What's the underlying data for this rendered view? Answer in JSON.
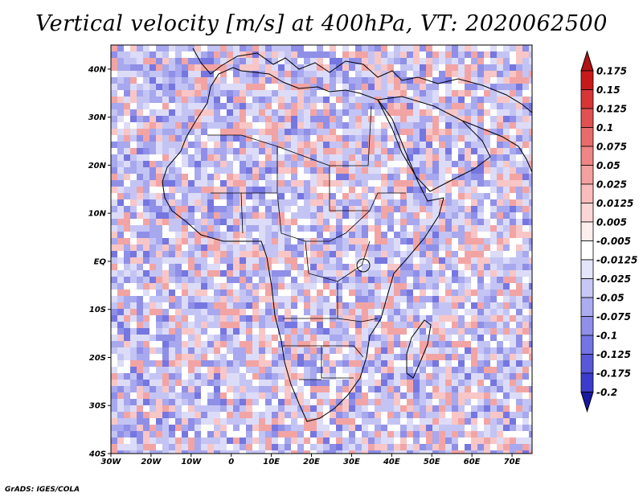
{
  "title": "Vertical velocity [m/s] at 400hPa, VT: 2020062500",
  "credit": "GrADS: IGES/COLA",
  "map": {
    "lon_range": [
      -30,
      75
    ],
    "lat_range": [
      -40,
      45
    ],
    "lat_ticks": [
      {
        "value": 40,
        "label": "40N"
      },
      {
        "value": 30,
        "label": "30N"
      },
      {
        "value": 20,
        "label": "20N"
      },
      {
        "value": 10,
        "label": "10N"
      },
      {
        "value": 0,
        "label": "EQ"
      },
      {
        "value": -10,
        "label": "10S"
      },
      {
        "value": -20,
        "label": "20S"
      },
      {
        "value": -30,
        "label": "30S"
      },
      {
        "value": -40,
        "label": "40S"
      }
    ],
    "lon_ticks": [
      {
        "value": -30,
        "label": "30W"
      },
      {
        "value": -20,
        "label": "20W"
      },
      {
        "value": -10,
        "label": "10W"
      },
      {
        "value": 0,
        "label": "0"
      },
      {
        "value": 10,
        "label": "10E"
      },
      {
        "value": 20,
        "label": "20E"
      },
      {
        "value": 30,
        "label": "30E"
      },
      {
        "value": 40,
        "label": "40E"
      },
      {
        "value": 50,
        "label": "50E"
      },
      {
        "value": 60,
        "label": "60E"
      },
      {
        "value": 70,
        "label": "70E"
      }
    ]
  },
  "colorbar": {
    "levels": [
      {
        "label": "0.175",
        "color": "#c81a1a"
      },
      {
        "label": "0.15",
        "color": "#d63636"
      },
      {
        "label": "0.125",
        "color": "#e05252"
      },
      {
        "label": "0.1",
        "color": "#e86c6c"
      },
      {
        "label": "0.075",
        "color": "#ee8686"
      },
      {
        "label": "0.05",
        "color": "#f3a0a0"
      },
      {
        "label": "0.025",
        "color": "#f8bcbc"
      },
      {
        "label": "0.0125",
        "color": "#fbd6d6"
      },
      {
        "label": "0.005",
        "color": "#fdeeee"
      },
      {
        "label": "-0.005",
        "color": "#ffffff"
      },
      {
        "label": "-0.0125",
        "color": "#e4e4fb"
      },
      {
        "label": "-0.025",
        "color": "#c8c8f6"
      },
      {
        "label": "-0.05",
        "color": "#acacf0"
      },
      {
        "label": "-0.075",
        "color": "#9090ea"
      },
      {
        "label": "-0.1",
        "color": "#7474e2"
      },
      {
        "label": "-0.125",
        "color": "#5858d8"
      },
      {
        "label": "-0.175",
        "color": "#3c3ccc"
      },
      {
        "label": "-0.2",
        "color": "#2626b8"
      }
    ],
    "top_color": "#b01414",
    "bottom_color": "#1818a0"
  }
}
